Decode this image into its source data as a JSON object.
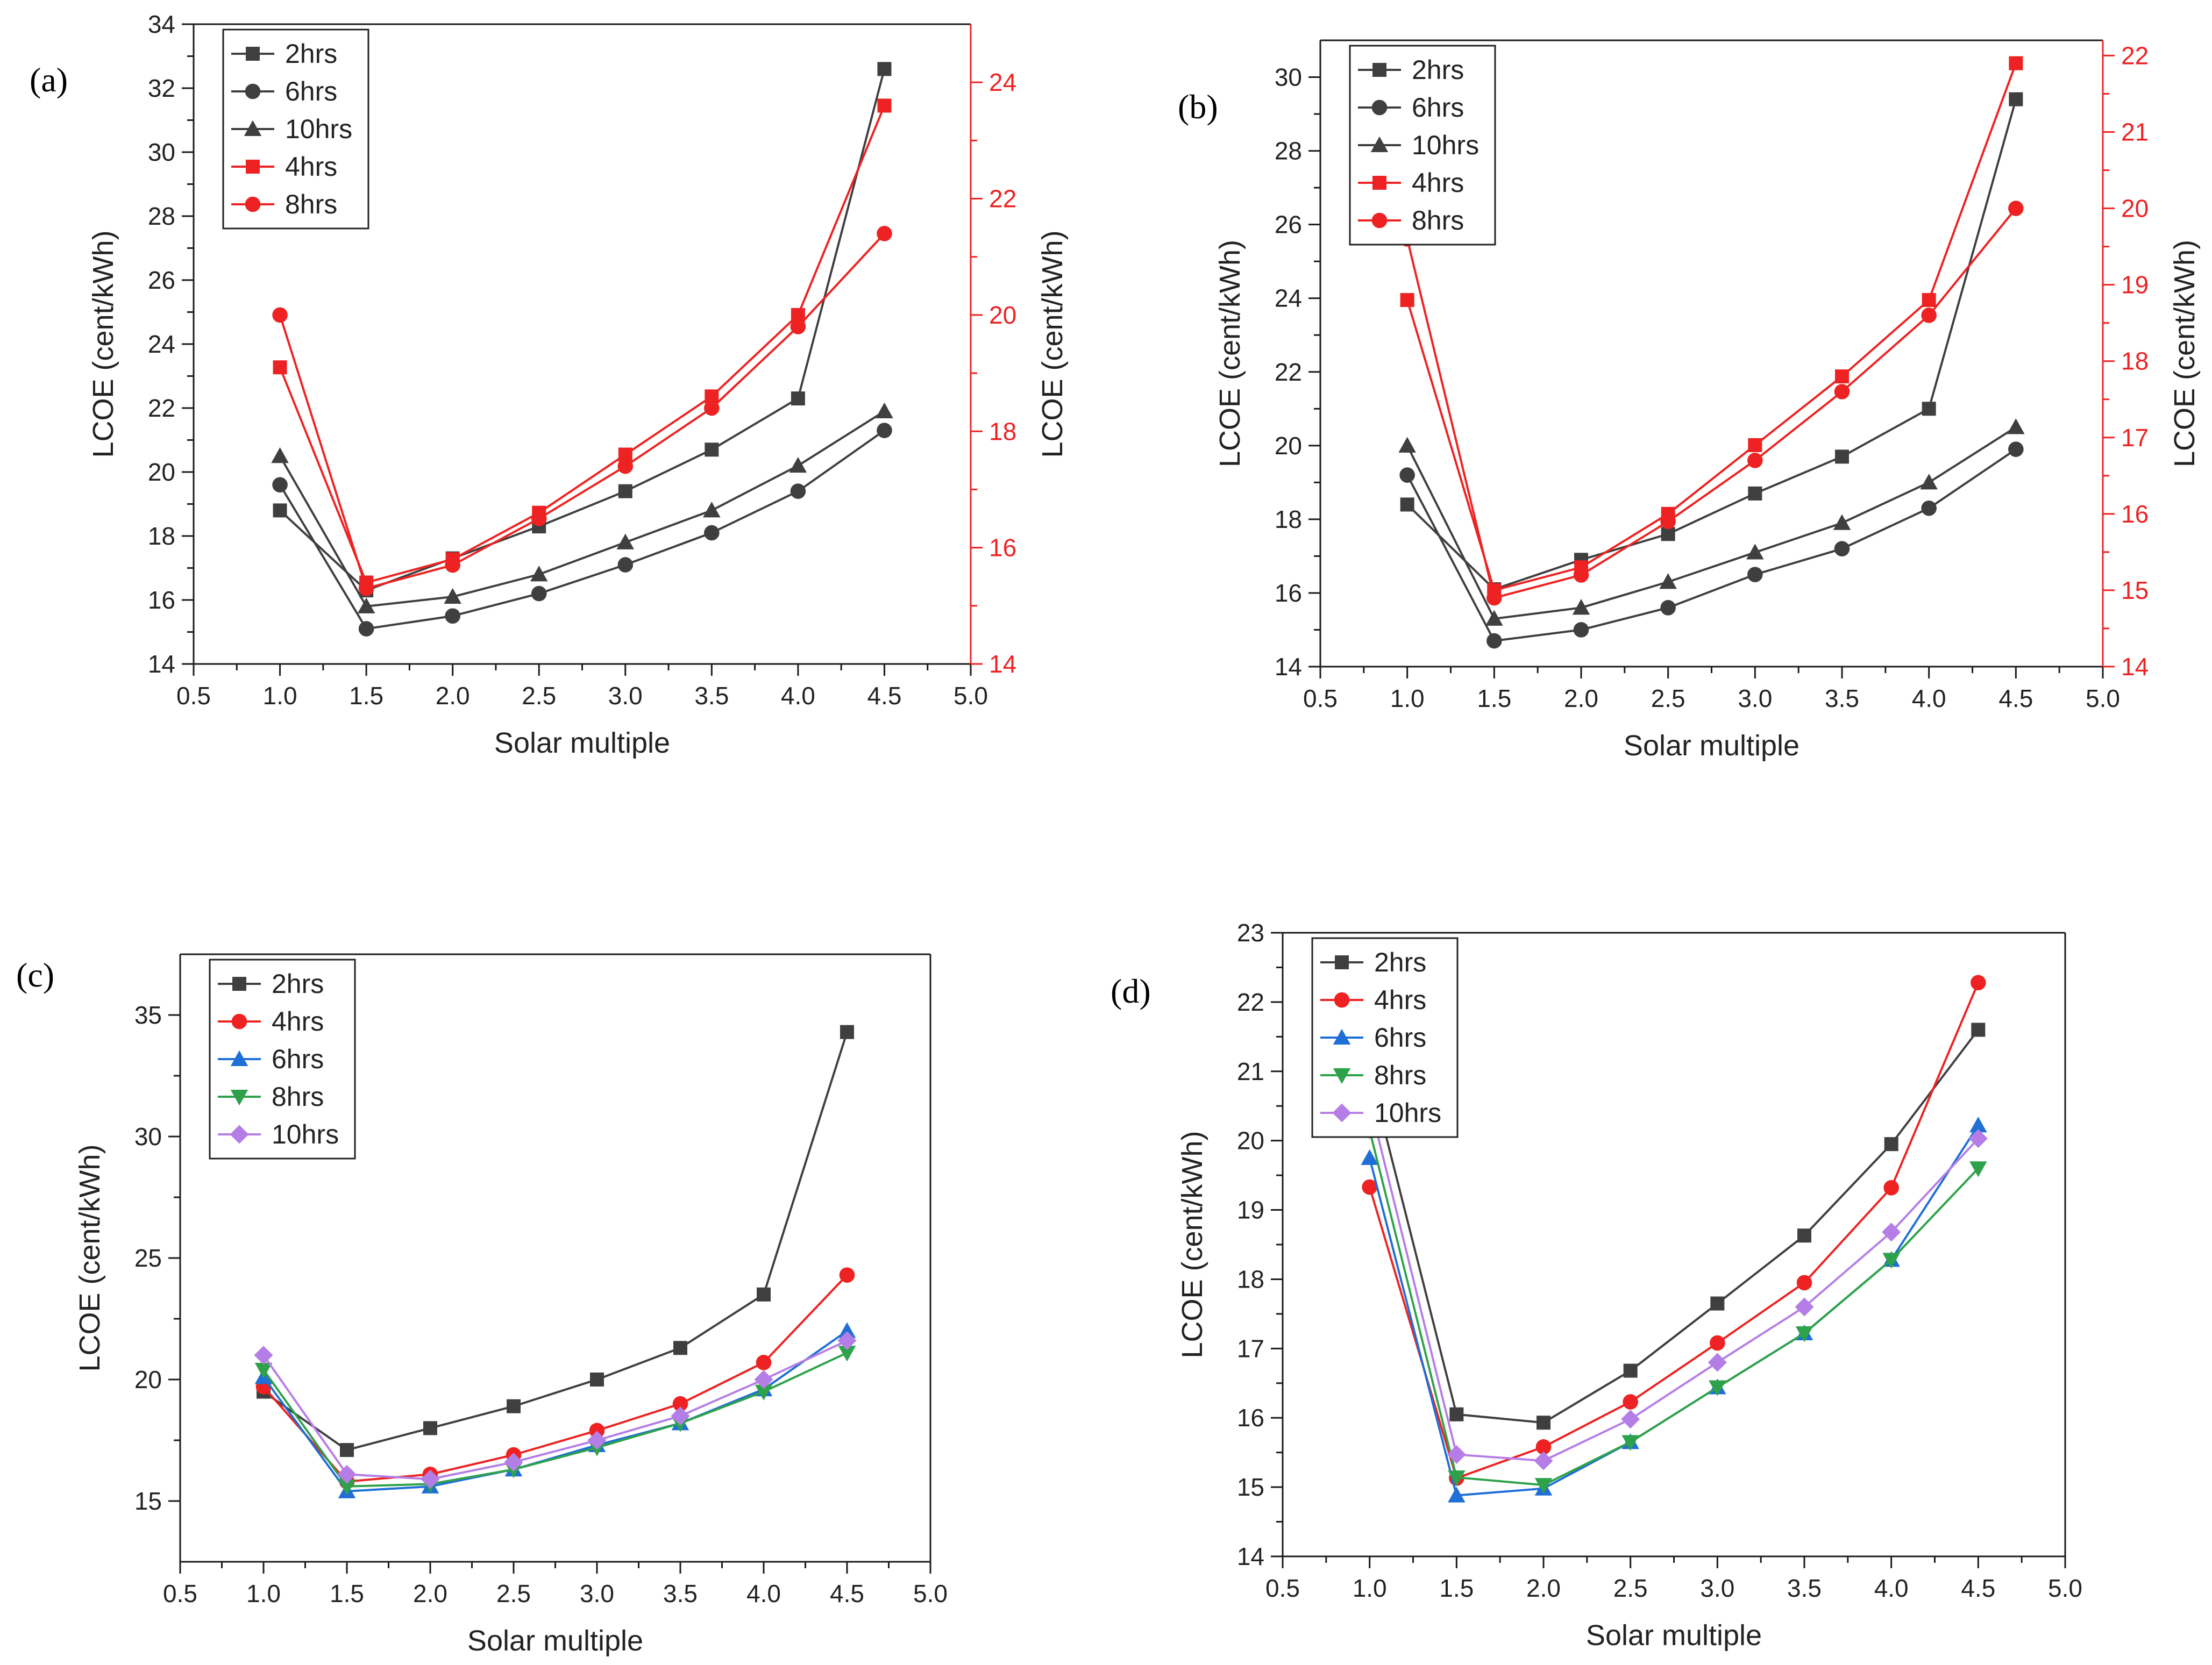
{
  "chart_data": [
    {
      "panel_label": "(a)",
      "type": "line",
      "xlabel": "Solar multiple",
      "ylabel": "LCOE (cent/kWh)",
      "y2label": "LCOE (cent/kWh)",
      "x": [
        1.0,
        1.5,
        2.0,
        2.5,
        3.0,
        3.5,
        4.0,
        4.5
      ],
      "xlim": [
        0.5,
        5.0
      ],
      "xticks": [
        "0.5",
        "1.0",
        "1.5",
        "2.0",
        "2.5",
        "3.0",
        "3.5",
        "4.0",
        "4.5",
        "5.0"
      ],
      "ylim": [
        14,
        34
      ],
      "yticks": [
        "14",
        "16",
        "18",
        "20",
        "22",
        "24",
        "26",
        "28",
        "30",
        "32",
        "34"
      ],
      "y2lim": [
        14,
        25
      ],
      "y2ticks": [
        "14",
        "16",
        "18",
        "20",
        "22",
        "24"
      ],
      "legend_position": "top-left",
      "series": [
        {
          "name": "2hrs",
          "axis": "left",
          "color": "#3f3f3f",
          "marker": "square",
          "values": [
            18.8,
            16.3,
            17.3,
            18.3,
            19.4,
            20.7,
            22.3,
            32.6
          ]
        },
        {
          "name": "6hrs",
          "axis": "left",
          "color": "#3f3f3f",
          "marker": "circle",
          "values": [
            19.6,
            15.1,
            15.5,
            16.2,
            17.1,
            18.1,
            19.4,
            21.3
          ]
        },
        {
          "name": "10hrs",
          "axis": "left",
          "color": "#3f3f3f",
          "marker": "triangle",
          "values": [
            20.5,
            15.8,
            16.1,
            16.8,
            17.8,
            18.8,
            20.2,
            21.9
          ]
        },
        {
          "name": "4hrs",
          "axis": "right",
          "color": "#ee2222",
          "marker": "square",
          "values": [
            19.1,
            15.4,
            15.8,
            16.6,
            17.6,
            18.6,
            20.0,
            23.6
          ]
        },
        {
          "name": "8hrs",
          "axis": "right",
          "color": "#ee2222",
          "marker": "circle",
          "values": [
            20.0,
            15.3,
            15.7,
            16.5,
            17.4,
            18.4,
            19.8,
            21.4
          ]
        }
      ]
    },
    {
      "panel_label": "(b)",
      "type": "line",
      "xlabel": "Solar multiple",
      "ylabel": "LCOE (cent/kWh)",
      "y2label": "LCOE (cent/kWh)",
      "x": [
        1.0,
        1.5,
        2.0,
        2.5,
        3.0,
        3.5,
        4.0,
        4.5
      ],
      "xlim": [
        0.5,
        5.0
      ],
      "xticks": [
        "0.5",
        "1.0",
        "1.5",
        "2.0",
        "2.5",
        "3.0",
        "3.5",
        "4.0",
        "4.5",
        "5.0"
      ],
      "ylim": [
        14,
        31
      ],
      "yticks": [
        "14",
        "16",
        "18",
        "20",
        "22",
        "24",
        "26",
        "28",
        "30"
      ],
      "y2lim": [
        14,
        22.2
      ],
      "y2ticks": [
        "14",
        "15",
        "16",
        "17",
        "18",
        "19",
        "20",
        "21",
        "22"
      ],
      "legend_position": "top-left",
      "series": [
        {
          "name": "2hrs",
          "axis": "left",
          "color": "#3f3f3f",
          "marker": "square",
          "values": [
            18.4,
            16.1,
            16.9,
            17.6,
            18.7,
            19.7,
            21.0,
            29.4
          ]
        },
        {
          "name": "6hrs",
          "axis": "left",
          "color": "#3f3f3f",
          "marker": "circle",
          "values": [
            19.2,
            14.7,
            15.0,
            15.6,
            16.5,
            17.2,
            18.3,
            19.9
          ]
        },
        {
          "name": "10hrs",
          "axis": "left",
          "color": "#3f3f3f",
          "marker": "triangle",
          "values": [
            20.0,
            15.3,
            15.6,
            16.3,
            17.1,
            17.9,
            19.0,
            20.5
          ]
        },
        {
          "name": "4hrs",
          "axis": "right",
          "color": "#ee2222",
          "marker": "square",
          "values": [
            18.8,
            15.0,
            15.3,
            16.0,
            16.9,
            17.8,
            18.8,
            21.9
          ]
        },
        {
          "name": "8hrs",
          "axis": "right",
          "color": "#ee2222",
          "marker": "circle",
          "values": [
            19.6,
            14.9,
            15.2,
            15.9,
            16.7,
            17.6,
            18.6,
            20.0
          ]
        }
      ]
    },
    {
      "panel_label": "(c)",
      "type": "line",
      "xlabel": "Solar multiple",
      "ylabel": "LCOE (cent/kWh)",
      "x": [
        1.0,
        1.5,
        2.0,
        2.5,
        3.0,
        3.5,
        4.0,
        4.5
      ],
      "xlim": [
        0.5,
        5.0
      ],
      "xticks": [
        "0.5",
        "1.0",
        "1.5",
        "2.0",
        "2.5",
        "3.0",
        "3.5",
        "4.0",
        "4.5",
        "5.0"
      ],
      "ylim": [
        12.5,
        37.5
      ],
      "yticks": [
        "15",
        "20",
        "25",
        "30",
        "35"
      ],
      "legend_position": "top-left",
      "series": [
        {
          "name": "2hrs",
          "color": "#3f3f3f",
          "marker": "square",
          "values": [
            19.5,
            17.1,
            18.0,
            18.9,
            20.0,
            21.3,
            23.5,
            34.3
          ]
        },
        {
          "name": "4hrs",
          "color": "#ee2222",
          "marker": "circle",
          "values": [
            19.7,
            15.8,
            16.1,
            16.9,
            17.9,
            19.0,
            20.7,
            24.3
          ]
        },
        {
          "name": "6hrs",
          "color": "#1f6fd6",
          "marker": "triangle",
          "values": [
            20.1,
            15.4,
            15.6,
            16.3,
            17.3,
            18.2,
            19.6,
            22.0
          ]
        },
        {
          "name": "8hrs",
          "color": "#2ea24a",
          "marker": "triangle-down",
          "values": [
            20.4,
            15.6,
            15.7,
            16.3,
            17.2,
            18.2,
            19.5,
            21.1
          ]
        },
        {
          "name": "10hrs",
          "color": "#b57ee6",
          "marker": "diamond",
          "values": [
            21.0,
            16.1,
            15.9,
            16.6,
            17.5,
            18.5,
            20.0,
            21.6
          ]
        }
      ]
    },
    {
      "panel_label": "(d)",
      "type": "line",
      "xlabel": "Solar multiple",
      "ylabel": "LCOE (cent/kWh)",
      "x": [
        1.0,
        1.5,
        2.0,
        2.5,
        3.0,
        3.5,
        4.0,
        4.5
      ],
      "xlim": [
        0.5,
        5.0
      ],
      "xticks": [
        "0.5",
        "1.0",
        "1.5",
        "2.0",
        "2.5",
        "3.0",
        "3.5",
        "4.0",
        "4.5",
        "5.0"
      ],
      "ylim": [
        14,
        23
      ],
      "yticks": [
        "14",
        "15",
        "16",
        "17",
        "18",
        "19",
        "20",
        "21",
        "22",
        "23"
      ],
      "legend_position": "top-left",
      "series": [
        {
          "name": "2hrs",
          "color": "#3f3f3f",
          "marker": "square",
          "values": [
            21.0,
            16.05,
            15.93,
            16.68,
            17.65,
            18.63,
            19.95,
            21.6
          ]
        },
        {
          "name": "4hrs",
          "color": "#ee2222",
          "marker": "circle",
          "values": [
            19.33,
            15.13,
            15.58,
            16.23,
            17.08,
            17.95,
            19.32,
            22.28
          ]
        },
        {
          "name": "6hrs",
          "color": "#1f6fd6",
          "marker": "triangle",
          "values": [
            19.75,
            14.88,
            14.98,
            15.65,
            16.44,
            17.22,
            18.28,
            20.22
          ]
        },
        {
          "name": "8hrs",
          "color": "#2ea24a",
          "marker": "triangle-down",
          "values": [
            20.15,
            15.14,
            15.03,
            15.65,
            16.44,
            17.22,
            18.28,
            19.6
          ]
        },
        {
          "name": "10hrs",
          "color": "#b57ee6",
          "marker": "diamond",
          "values": [
            20.55,
            15.47,
            15.38,
            15.98,
            16.8,
            17.6,
            18.68,
            20.03
          ]
        }
      ]
    }
  ]
}
